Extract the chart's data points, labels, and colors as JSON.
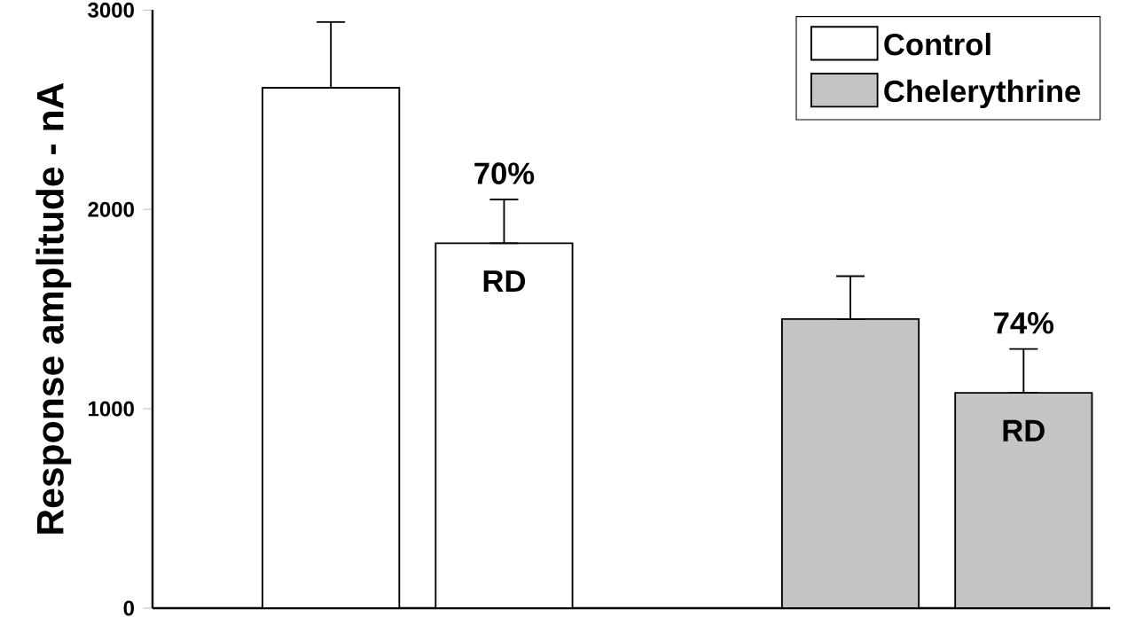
{
  "chart_data": {
    "type": "bar",
    "ylabel": "Response amplitude - nA",
    "categories": [
      null,
      null,
      null,
      null,
      null
    ],
    "series": [
      {
        "name": "Control",
        "color": "#ffffff",
        "values": [
          2610,
          1830,
          null,
          null,
          null
        ],
        "errors": [
          [
            2610,
            2940
          ],
          [
            1830,
            2050
          ],
          null,
          null,
          null
        ]
      },
      {
        "name": "Chelerythrine",
        "color": "#c4c4c4",
        "values": [
          null,
          null,
          null,
          1450,
          1080
        ],
        "errors": [
          null,
          null,
          null,
          [
            1450,
            1665
          ],
          [
            1080,
            1300
          ]
        ]
      }
    ],
    "ylim": [
      0,
      3000
    ],
    "yticks": [
      0,
      1000,
      2000,
      3000
    ],
    "grid": false,
    "legend": "top right",
    "annotations": [
      "70%",
      "RD",
      "74%",
      "RD"
    ]
  }
}
